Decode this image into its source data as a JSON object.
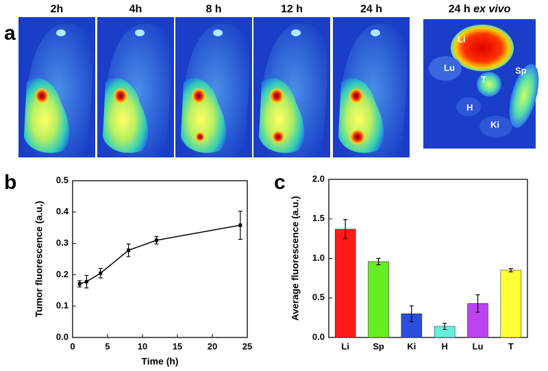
{
  "panel_labels": [
    "a",
    "b",
    "c"
  ],
  "images": {
    "time_labels": [
      "2h",
      "4h",
      "8 h",
      "12 h",
      "24 h"
    ],
    "ex_vivo_title": {
      "prefix": "24 h",
      "italic": "ex vivo"
    },
    "organ_labels": [
      "Li",
      "Lu",
      "T",
      "Sp",
      "H",
      "Ki"
    ]
  },
  "chart_data": [
    {
      "type": "line",
      "x": [
        1,
        2,
        4,
        8,
        12,
        24
      ],
      "values": [
        0.171,
        0.178,
        0.205,
        0.278,
        0.31,
        0.358
      ],
      "errors": [
        0.01,
        0.02,
        0.015,
        0.02,
        0.012,
        0.045
      ],
      "color": "#000000",
      "xlabel": "Time (h)",
      "ylabel": "Tumor fluorescence (a.u.)",
      "xlim": [
        0,
        25
      ],
      "xticks": [
        0,
        5,
        10,
        15,
        20,
        25
      ],
      "ylim": [
        0,
        0.5
      ],
      "yticks": [
        {
          "value": 0,
          "label": "0.0"
        },
        0.1,
        0.2,
        0.3,
        0.4,
        0.5
      ]
    },
    {
      "type": "bar",
      "categories": [
        "Li",
        "Sp",
        "Ki",
        "H",
        "Lu",
        "T"
      ],
      "values": [
        1.37,
        0.96,
        0.3,
        0.14,
        0.43,
        0.85
      ],
      "errors": [
        0.12,
        0.04,
        0.1,
        0.04,
        0.11,
        0.02
      ],
      "colors": [
        "#ff1a1a",
        "#66ee22",
        "#2a4fdc",
        "#66eedd",
        "#bb44ee",
        "#ffff33"
      ],
      "ylabel": "Average fluorescence (a.u.)",
      "ylim": [
        0,
        2
      ],
      "yticks": [
        {
          "value": 0,
          "label": "0.0"
        },
        0.5,
        {
          "value": 1,
          "label": "1.0"
        },
        1.5,
        {
          "value": 2,
          "label": "2.0"
        }
      ]
    }
  ]
}
